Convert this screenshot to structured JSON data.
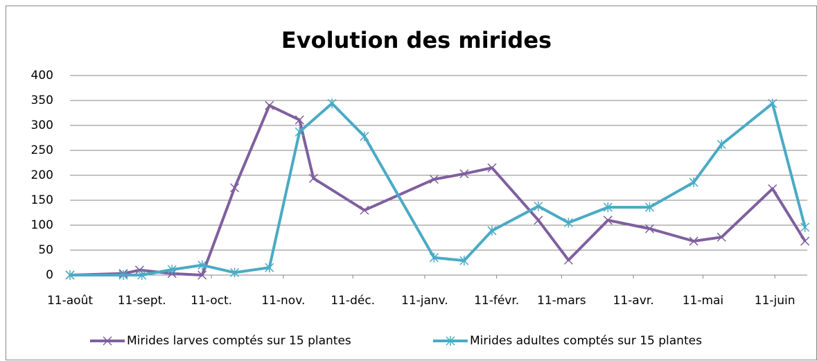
{
  "chart_data": {
    "type": "line",
    "title": "Evolution des mirides",
    "ylim": [
      0,
      400
    ],
    "yticks": [
      0,
      50,
      100,
      150,
      200,
      250,
      300,
      350,
      400
    ],
    "grid": true,
    "legend": "bottom",
    "xlim": [
      "08-11",
      "06-25"
    ],
    "xticks": [
      {
        "value": "08-11",
        "label": "11-août"
      },
      {
        "value": "09-11",
        "label": "11-sept."
      },
      {
        "value": "10-11",
        "label": "11-oct."
      },
      {
        "value": "11-11",
        "label": "11-nov."
      },
      {
        "value": "12-11",
        "label": "11-déc."
      },
      {
        "value": "01-11",
        "label": "11-janv."
      },
      {
        "value": "02-11",
        "label": "11-févr."
      },
      {
        "value": "03-11",
        "label": "11-mars"
      },
      {
        "value": "04-11",
        "label": "11-avr."
      },
      {
        "value": "05-11",
        "label": "11-mai"
      },
      {
        "value": "06-11",
        "label": "11-juin"
      }
    ],
    "series": [
      {
        "name": "Mirides larves comptés sur 15 plantes",
        "color": "#7f5f9f",
        "marker": "x",
        "x": [
          "08-11",
          "09-03",
          "09-10",
          "09-24",
          "10-07",
          "10-21",
          "11-05",
          "11-18",
          "11-24",
          "12-16",
          "01-15",
          "01-28",
          "02-09",
          "03-01",
          "03-14",
          "03-31",
          "04-18",
          "05-07",
          "05-19",
          "06-10",
          "06-24"
        ],
        "values": [
          0,
          3,
          10,
          3,
          0,
          175,
          340,
          311,
          194,
          130,
          192,
          203,
          215,
          110,
          30,
          110,
          93,
          68,
          76,
          173,
          68
        ]
      },
      {
        "name": "Mirides adultes comptés sur 15 plantes",
        "color": "#4aaac5",
        "marker": "star",
        "x": [
          "08-11",
          "09-03",
          "09-11",
          "09-24",
          "10-07",
          "10-21",
          "11-05",
          "11-18",
          "12-02",
          "12-16",
          "01-15",
          "01-28",
          "02-09",
          "03-01",
          "03-14",
          "03-31",
          "04-18",
          "05-07",
          "05-19",
          "06-10",
          "06-24"
        ],
        "values": [
          0,
          0,
          0,
          11,
          20,
          5,
          15,
          287,
          344,
          278,
          35,
          29,
          89,
          138,
          105,
          136,
          136,
          186,
          262,
          344,
          96
        ]
      }
    ]
  }
}
